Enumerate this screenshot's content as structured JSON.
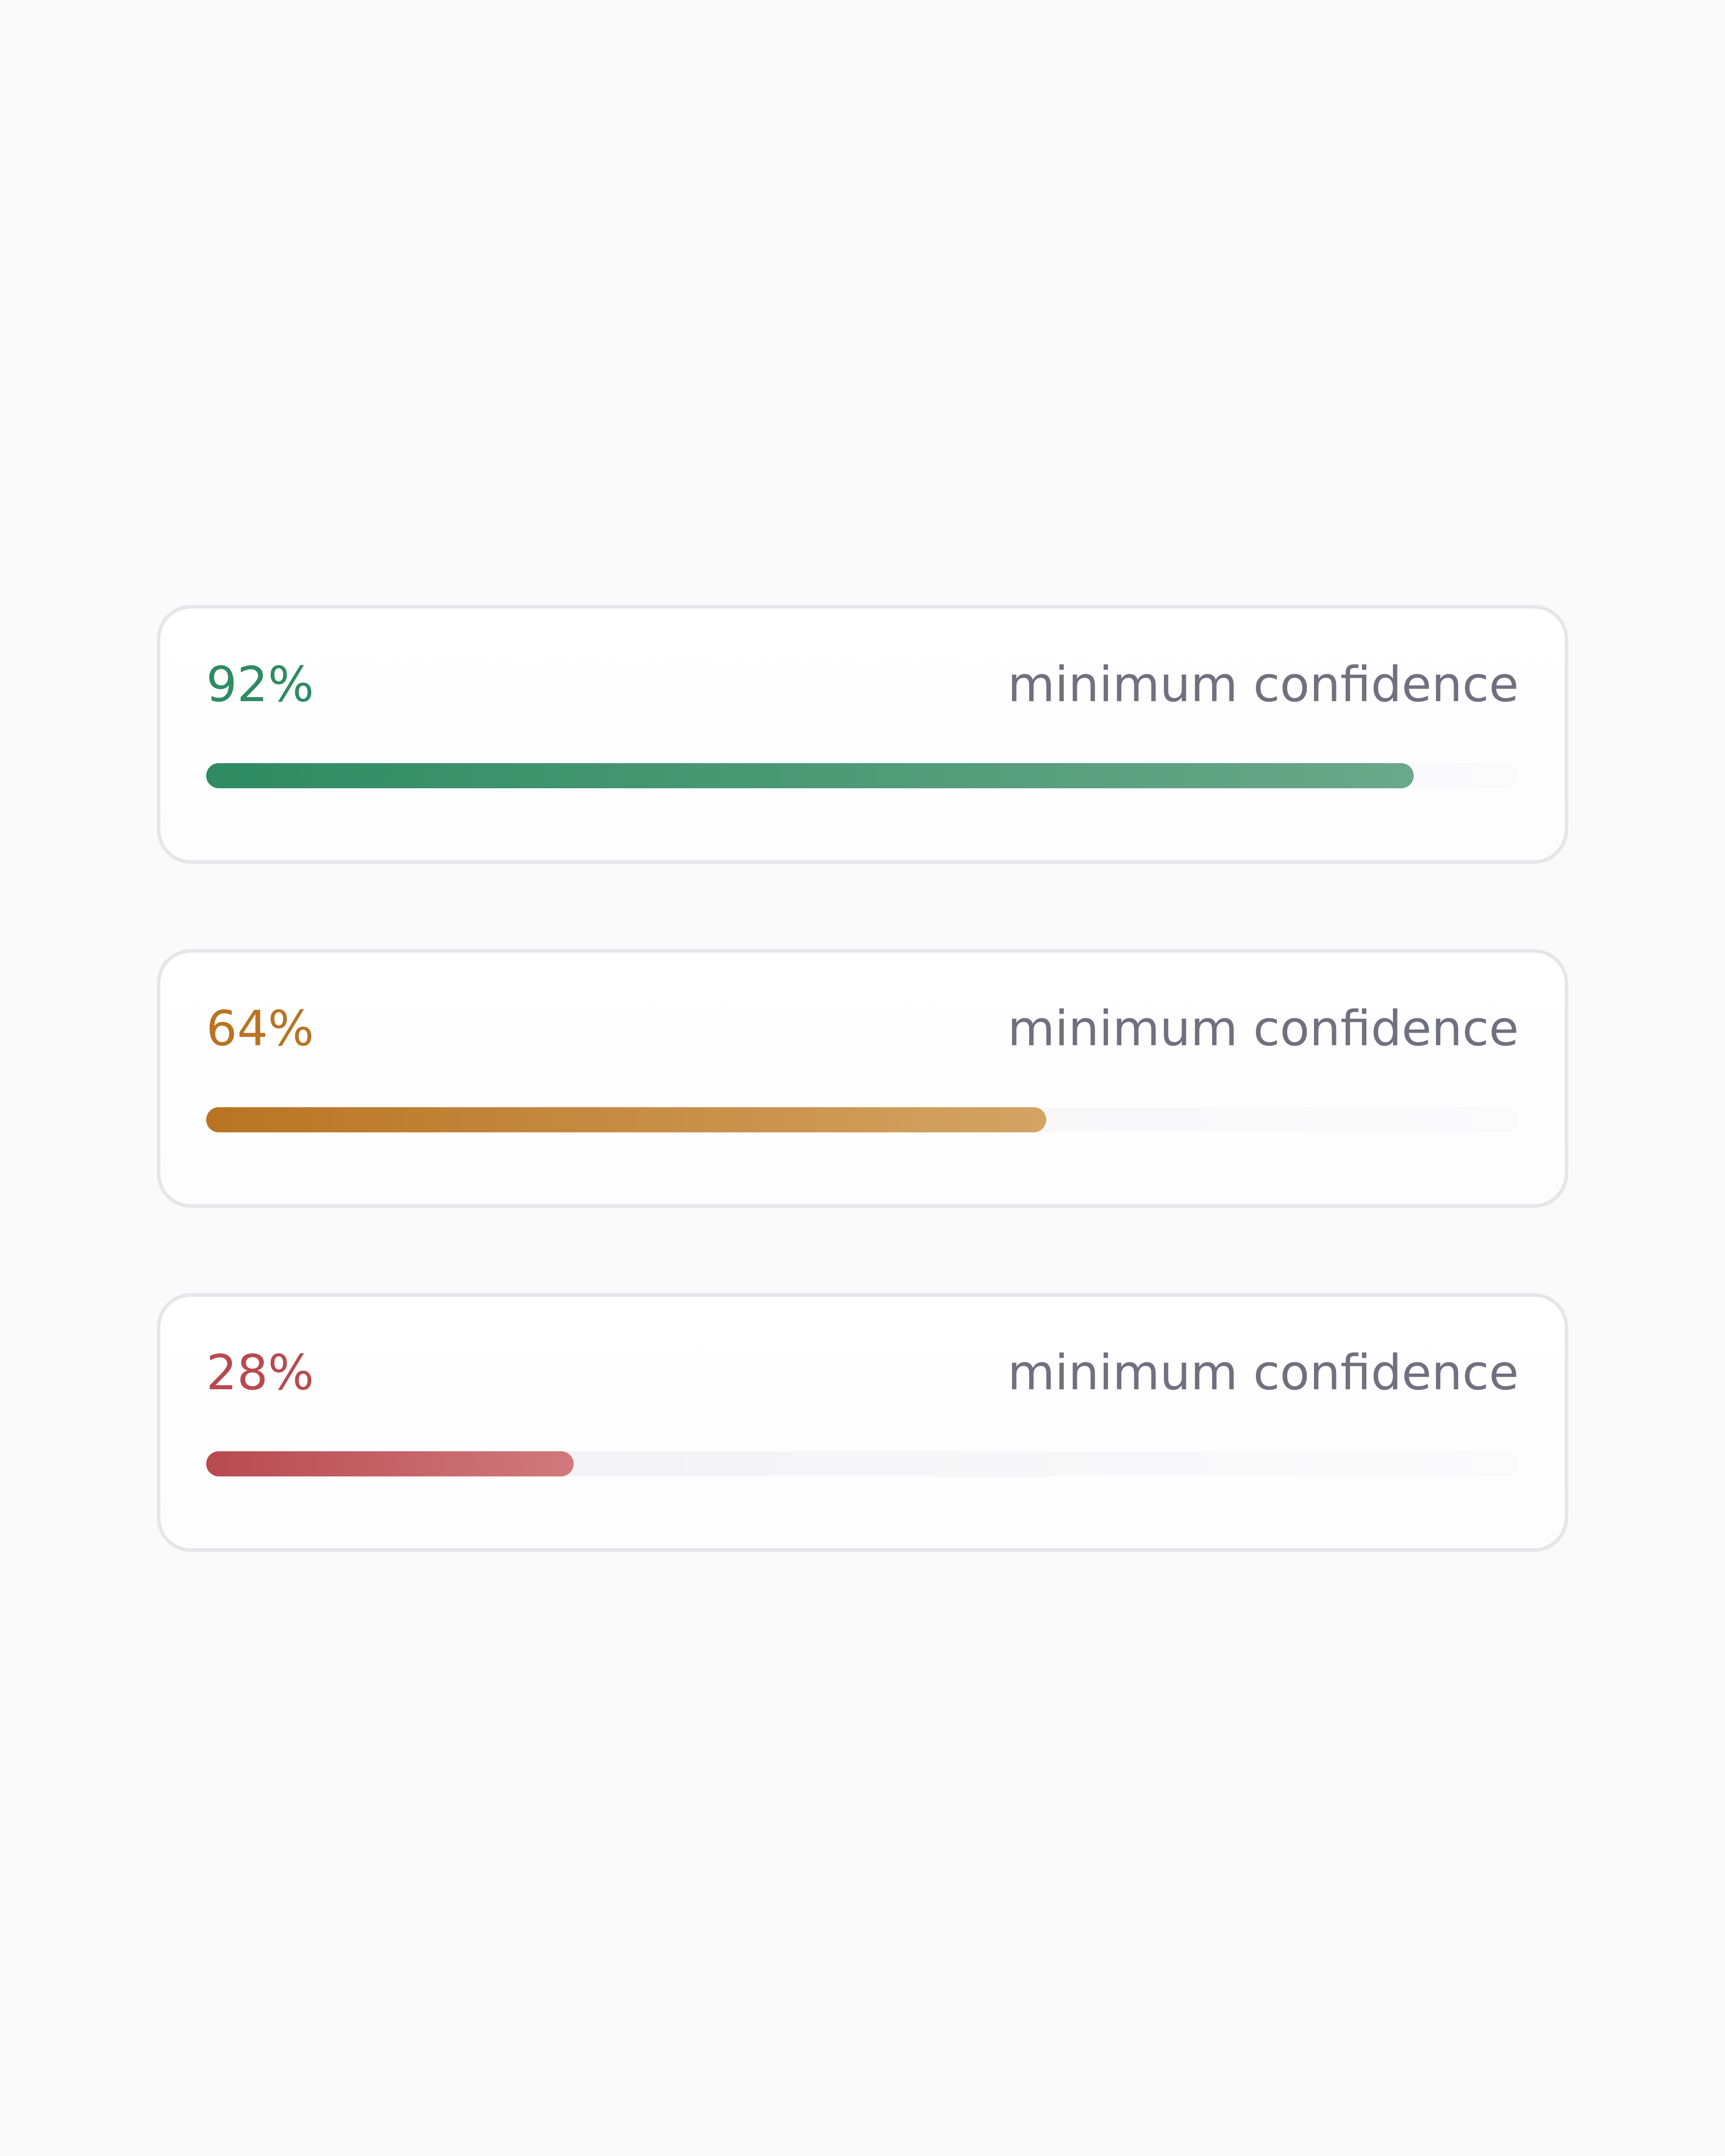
{
  "cards": [
    {
      "value_label": "92%",
      "value": 92,
      "caption": "minimum confidence",
      "color": "#2e8b62",
      "color_end": "#6aa88a"
    },
    {
      "value_label": "64%",
      "value": 64,
      "caption": "minimum confidence",
      "color": "#b87423",
      "color_end": "#d4a464"
    },
    {
      "value_label": "28%",
      "value": 28,
      "caption": "minimum confidence",
      "color": "#b84a4f",
      "color_end": "#d07a7e"
    }
  ],
  "scale_max": 100
}
